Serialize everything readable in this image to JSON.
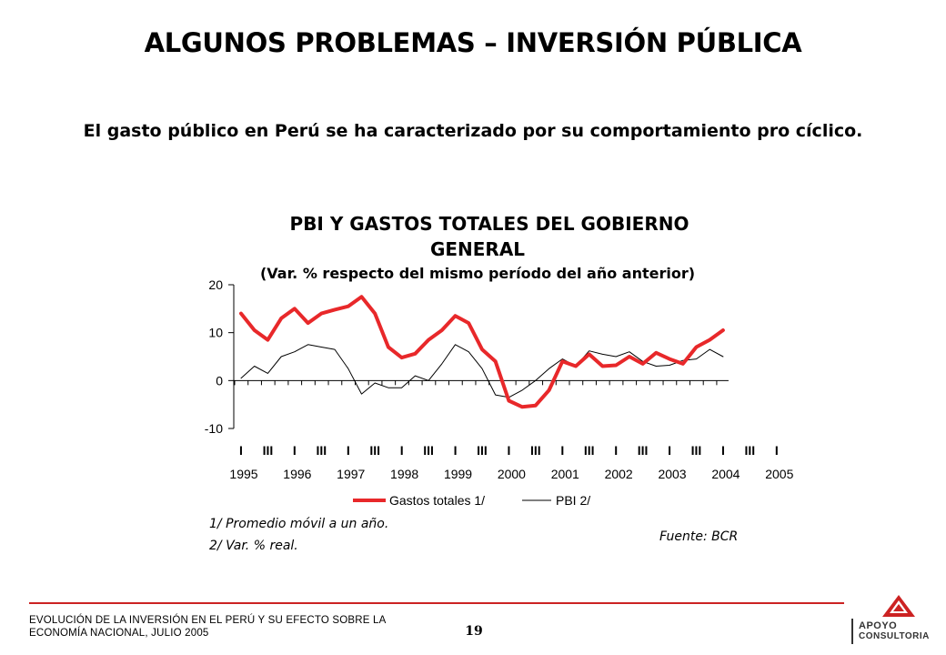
{
  "page": {
    "title": "ALGUNOS PROBLEMAS – INVERSIÓN PÚBLICA",
    "subtitle": "El gasto público en Perú se ha caracterizado por su comportamiento pro cíclico.",
    "footer_text": "EVOLUCIÓN DE LA INVERSIÓN EN EL PERÚ Y SU EFECTO SOBRE LA ECONOMÍA NACIONAL, JULIO 2005",
    "page_number": "19",
    "logo_line1": "APOYO",
    "logo_line2": "CONSULTORIA",
    "accent_color": "#cc2222"
  },
  "chart_data": {
    "type": "line",
    "title_lines": [
      "PBI Y GASTOS TOTALES DEL GOBIERNO",
      "GENERAL"
    ],
    "subtitle": "(Var. % respecto del mismo período del año anterior)",
    "ylim": [
      -10,
      20
    ],
    "yticks": [
      20,
      10,
      0,
      -10
    ],
    "quarter_labels": [
      "I",
      "III",
      "I",
      "III",
      "I",
      "III",
      "I",
      "III",
      "I",
      "III",
      "I",
      "III",
      "I",
      "III",
      "I",
      "III",
      "I",
      "III",
      "I",
      "III",
      "I"
    ],
    "year_labels": [
      "1995",
      "1996",
      "1997",
      "1998",
      "1999",
      "2000",
      "2001",
      "2002",
      "2003",
      "2004",
      "2005"
    ],
    "series": [
      {
        "name": "Gastos totales 1/",
        "color": "#e8282a",
        "values": [
          14,
          10.5,
          8.5,
          13,
          15,
          12,
          14,
          14.8,
          15.5,
          17.5,
          14,
          7,
          4.8,
          5.6,
          8.5,
          10.5,
          13.5,
          12,
          6.5,
          4,
          -4.2,
          -5.5,
          -5.2,
          -2,
          4,
          3,
          5.5,
          3,
          3.2,
          5,
          3.5,
          5.8,
          4.5,
          3.5,
          7,
          8.5,
          10.5
        ]
      },
      {
        "name": "PBI 2/",
        "color": "#000000",
        "values": [
          0.5,
          3,
          1.5,
          5,
          6,
          7.5,
          7,
          6.5,
          2.5,
          -2.8,
          -0.5,
          -1.5,
          -1.5,
          1,
          0,
          3.5,
          7.5,
          6,
          2.5,
          -3,
          -3.5,
          -2,
          0,
          2.5,
          4.5,
          3,
          6.2,
          5.5,
          5,
          6,
          4,
          3,
          3.2,
          4.2,
          4.5,
          6.5,
          5
        ]
      }
    ],
    "notes": [
      "1/ Promedio móvil a un año.",
      "2/ Var. % real."
    ],
    "source": "Fuente: BCR"
  }
}
